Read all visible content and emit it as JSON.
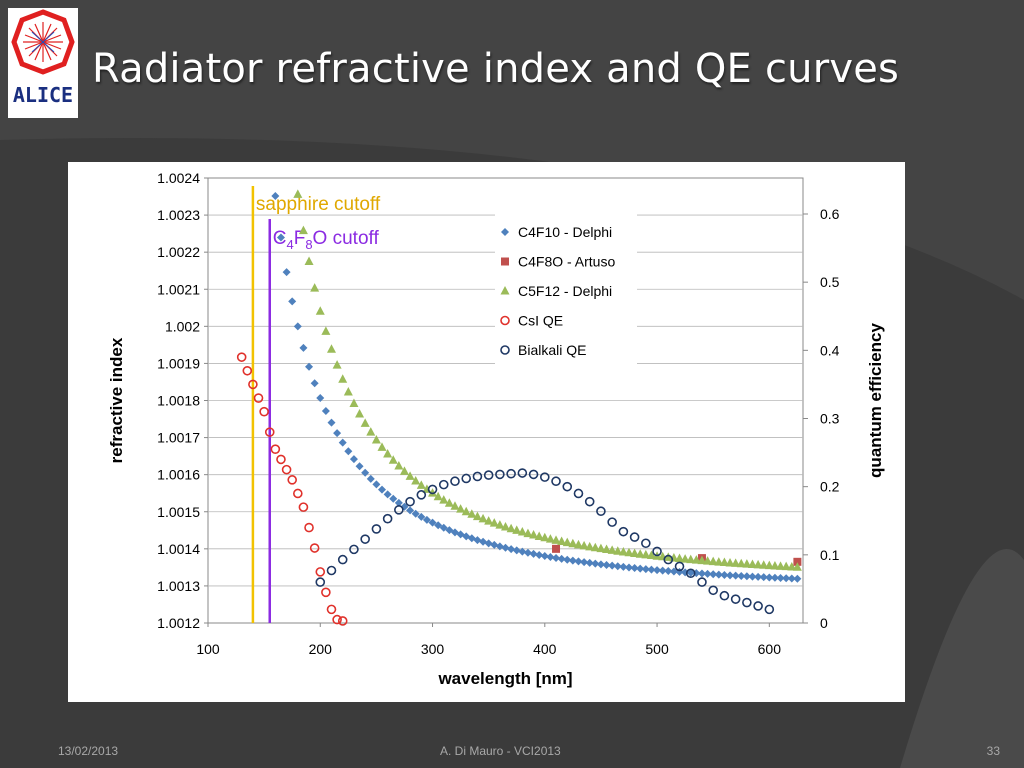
{
  "slide": {
    "title": "Radiator refractive index and QE curves",
    "logo_text": "ALICE",
    "footer_date": "13/02/2013",
    "footer_author": "A. Di Mauro - VCI2013",
    "page_number": "33"
  },
  "colors": {
    "background": "#3b3b3b",
    "c4f10": "#4f81bd",
    "c4f8o": "#c0504d",
    "c5f12": "#9bbb59",
    "csi": "#e0312b",
    "bialkali": "#1f3864",
    "sapphire_line": "#f2c200",
    "c4f8o_line": "#8b2be2"
  },
  "chart_data": {
    "type": "scatter",
    "xlabel": "wavelength [nm]",
    "ylabel": "refractive index",
    "y2label": "quantum efficiency",
    "xlim": [
      100,
      630
    ],
    "ylim": [
      1.0012,
      1.0024
    ],
    "y2lim": [
      0,
      0.65
    ],
    "x_ticks": [
      "100",
      "200",
      "300",
      "400",
      "500",
      "600"
    ],
    "y_ticks": [
      "1.0012",
      "1.0013",
      "1.0014",
      "1.0015",
      "1.0016",
      "1.0017",
      "1.0018",
      "1.0019",
      "1.002",
      "1.0021",
      "1.0022",
      "1.0023",
      "1.0024"
    ],
    "y2_ticks": [
      "0",
      "0.1",
      "0.2",
      "0.3",
      "0.4",
      "0.5",
      "0.6"
    ],
    "grid": true,
    "legend_position": "top-right",
    "annotations": [
      {
        "label": "sapphire cutoff",
        "x": 140
      },
      {
        "label_main": "C",
        "sub1": "4",
        "mid": "F",
        "sub2": "8",
        "tail": "O cutoff",
        "x": 155
      }
    ],
    "series": [
      {
        "name": "C4F10 - Delphi",
        "axis": "left",
        "marker": "diamond",
        "model": {
          "a": 6.786e-05,
          "b": 1.034e-05,
          "x_start": 110,
          "x_end": 625,
          "step": 5,
          "note": ""
        }
      },
      {
        "name": "C4F8O - Artuso",
        "axis": "left",
        "marker": "square",
        "x": [
          410,
          540,
          625
        ],
        "y": [
          1.0014,
          1.001375,
          1.001365
        ]
      },
      {
        "name": "C5F12 - Delphi",
        "axis": "left",
        "marker": "triangle",
        "model": {
          "a": 7.256e-05,
          "b": 1.233e-05,
          "x_start": 140,
          "x_end": 625,
          "step": 5
        }
      },
      {
        "name": "CsI QE",
        "axis": "right",
        "marker": "circle-open",
        "x": [
          130,
          135,
          140,
          145,
          150,
          155,
          160,
          165,
          170,
          175,
          180,
          185,
          190,
          195,
          200,
          205,
          210,
          215,
          220
        ],
        "y": [
          0.39,
          0.37,
          0.35,
          0.33,
          0.31,
          0.28,
          0.255,
          0.24,
          0.225,
          0.21,
          0.19,
          0.17,
          0.14,
          0.11,
          0.075,
          0.045,
          0.02,
          0.005,
          0.003
        ]
      },
      {
        "name": "Bialkali QE",
        "axis": "right",
        "marker": "circle-open",
        "x": [
          200,
          210,
          220,
          230,
          240,
          250,
          260,
          270,
          280,
          290,
          300,
          310,
          320,
          330,
          340,
          350,
          360,
          370,
          380,
          390,
          400,
          410,
          420,
          430,
          440,
          450,
          460,
          470,
          480,
          490,
          500,
          510,
          520,
          530,
          540,
          550,
          560,
          570,
          580,
          590,
          600
        ],
        "y": [
          0.06,
          0.077,
          0.093,
          0.108,
          0.123,
          0.138,
          0.153,
          0.166,
          0.178,
          0.188,
          0.196,
          0.203,
          0.208,
          0.212,
          0.215,
          0.217,
          0.218,
          0.219,
          0.22,
          0.218,
          0.214,
          0.208,
          0.2,
          0.19,
          0.178,
          0.164,
          0.148,
          0.134,
          0.126,
          0.117,
          0.105,
          0.093,
          0.083,
          0.073,
          0.06,
          0.048,
          0.04,
          0.035,
          0.03,
          0.025,
          0.02
        ]
      }
    ]
  }
}
